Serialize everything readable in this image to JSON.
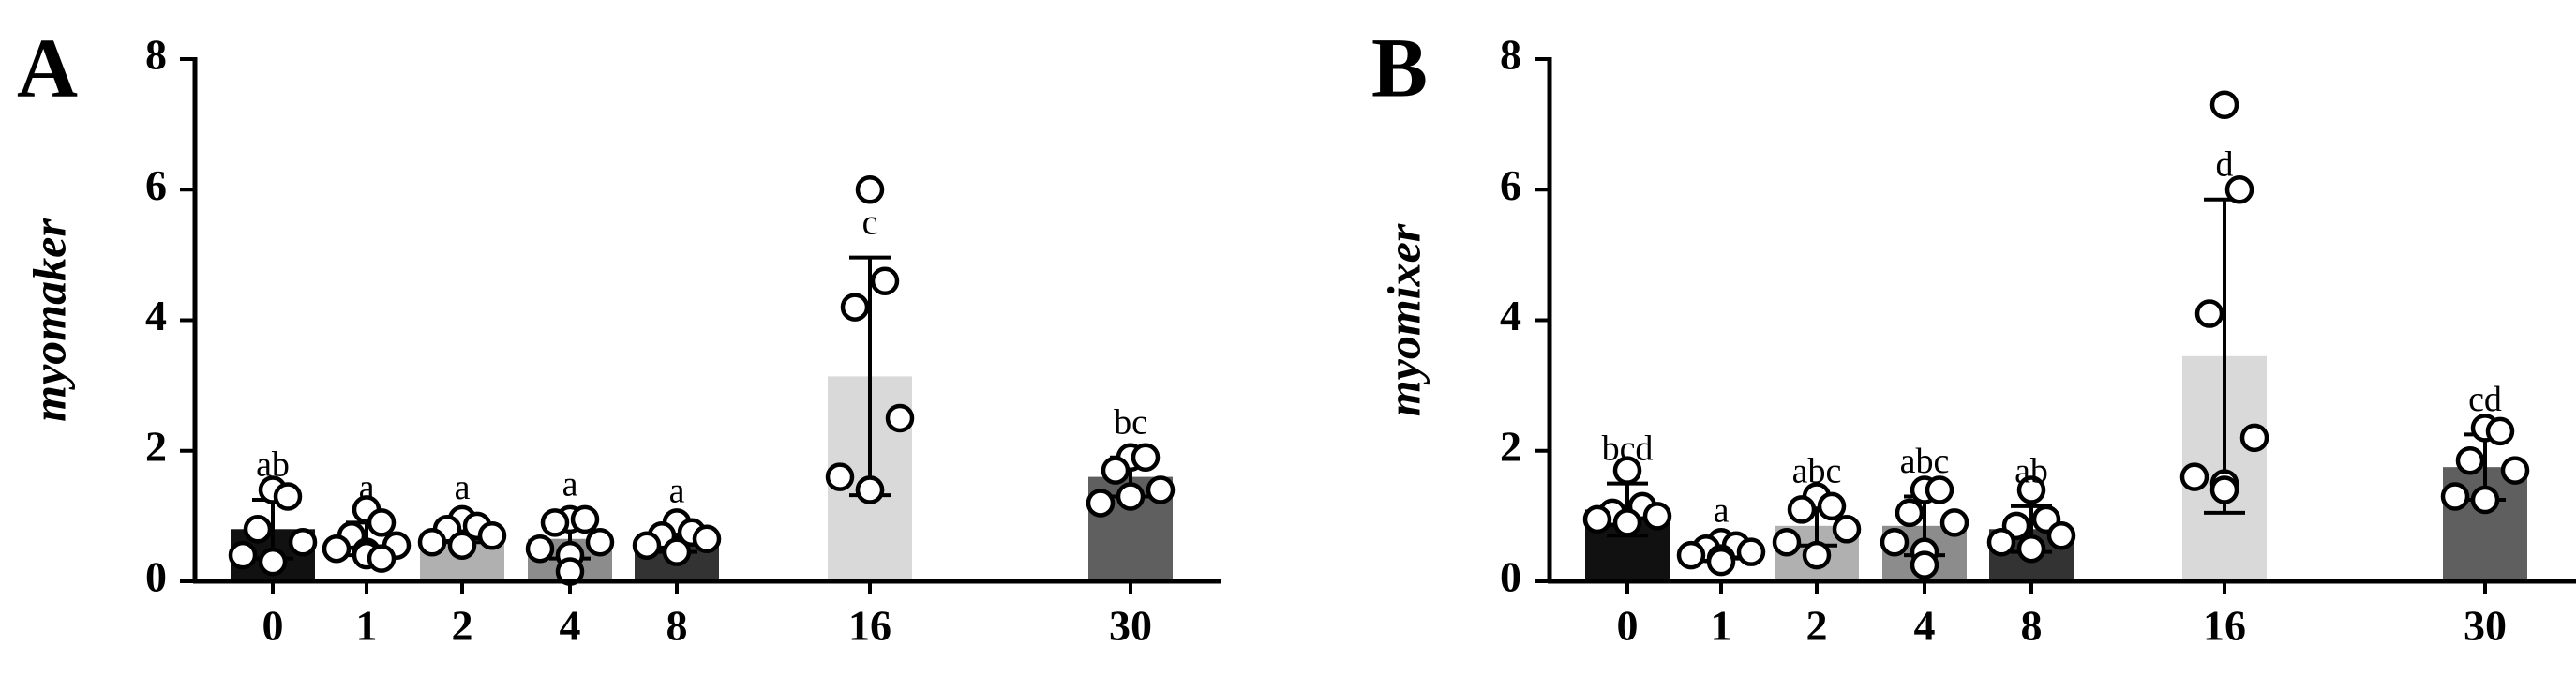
{
  "chart_data": [
    {
      "type": "bar",
      "panel": "A",
      "y_label": "myomaker",
      "categories": [
        "0",
        "1",
        "2",
        "4",
        "8",
        "16",
        "30"
      ],
      "values": [
        0.8,
        0.65,
        0.75,
        0.65,
        0.65,
        3.14,
        1.6
      ],
      "errors": [
        0.45,
        0.25,
        0.15,
        0.3,
        0.2,
        1.82,
        0.3
      ],
      "points": [
        [
          1.4,
          1.3,
          0.8,
          0.6,
          0.4,
          0.3
        ],
        [
          1.1,
          0.9,
          0.7,
          0.55,
          0.5,
          0.45,
          0.4,
          0.35
        ],
        [
          0.95,
          0.85,
          0.8,
          0.7,
          0.6,
          0.55
        ],
        [
          0.95,
          0.95,
          0.9,
          0.6,
          0.5,
          0.4,
          0.15
        ],
        [
          0.9,
          0.75,
          0.7,
          0.65,
          0.55,
          0.45
        ],
        [
          6.0,
          4.6,
          4.2,
          2.5,
          1.6,
          1.4,
          1.4
        ],
        [
          1.9,
          1.9,
          1.7,
          1.4,
          1.2,
          1.3
        ]
      ],
      "annotations": [
        "ab",
        "a",
        "a",
        "a",
        "a",
        "c",
        "bc"
      ],
      "colors": [
        "#111111",
        "#ffffff",
        "#b0b0b0",
        "#8c8c8c",
        "#333333",
        "#d9d9d9",
        "#5f5f5f"
      ],
      "ylim": [
        0,
        8
      ],
      "yticks": [
        0,
        2,
        4,
        6,
        8
      ]
    },
    {
      "type": "bar",
      "panel": "B",
      "y_label": "myomixer",
      "categories": [
        "0",
        "1",
        "2",
        "4",
        "8",
        "16",
        "30"
      ],
      "values": [
        1.1,
        0.45,
        0.85,
        0.85,
        0.8,
        3.45,
        1.75
      ],
      "errors": [
        0.4,
        0.1,
        0.3,
        0.45,
        0.35,
        2.4,
        0.5
      ],
      "points": [
        [
          1.7,
          1.15,
          1.05,
          1.0,
          0.95,
          0.9
        ],
        [
          0.6,
          0.55,
          0.5,
          0.45,
          0.4,
          0.35,
          0.3
        ],
        [
          1.3,
          1.15,
          1.1,
          0.8,
          0.6,
          0.4
        ],
        [
          1.4,
          1.4,
          1.05,
          0.9,
          0.6,
          0.45,
          0.25
        ],
        [
          1.4,
          0.95,
          0.85,
          0.7,
          0.6,
          0.5
        ],
        [
          7.3,
          6.0,
          4.1,
          2.2,
          1.6,
          1.5,
          1.4
        ],
        [
          2.35,
          2.3,
          1.85,
          1.7,
          1.3,
          1.25
        ]
      ],
      "annotations": [
        "bcd",
        "a",
        "abc",
        "abc",
        "ab",
        "d",
        "cd"
      ],
      "colors": [
        "#111111",
        "#ffffff",
        "#b0b0b0",
        "#8c8c8c",
        "#333333",
        "#d9d9d9",
        "#5f5f5f"
      ],
      "ylim": [
        0,
        8
      ],
      "yticks": [
        0,
        2,
        4,
        6,
        8
      ]
    }
  ]
}
